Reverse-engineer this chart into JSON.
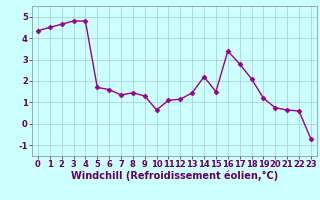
{
  "x": [
    0,
    1,
    2,
    3,
    4,
    5,
    6,
    7,
    8,
    9,
    10,
    11,
    12,
    13,
    14,
    15,
    16,
    17,
    18,
    19,
    20,
    21,
    22,
    23
  ],
  "y": [
    4.35,
    4.5,
    4.65,
    4.8,
    4.8,
    1.7,
    1.6,
    1.35,
    1.45,
    1.3,
    0.65,
    1.1,
    1.15,
    1.45,
    2.2,
    1.5,
    3.4,
    2.8,
    2.1,
    1.2,
    0.75,
    0.65,
    0.6,
    -0.7
  ],
  "line_color": "#990099",
  "marker": "D",
  "marker_size": 2.5,
  "bg_color": "#ccffff",
  "grid_color": "#aacccc",
  "xlabel": "Windchill (Refroidissement éolien,°C)",
  "xlabel_fontsize": 7,
  "ylim": [
    -1.5,
    5.5
  ],
  "yticks": [
    -1,
    0,
    1,
    2,
    3,
    4,
    5
  ],
  "xticks": [
    0,
    1,
    2,
    3,
    4,
    5,
    6,
    7,
    8,
    9,
    10,
    11,
    12,
    13,
    14,
    15,
    16,
    17,
    18,
    19,
    20,
    21,
    22,
    23
  ],
  "tick_fontsize": 6,
  "line_width": 1.0,
  "spine_color": "#888888"
}
